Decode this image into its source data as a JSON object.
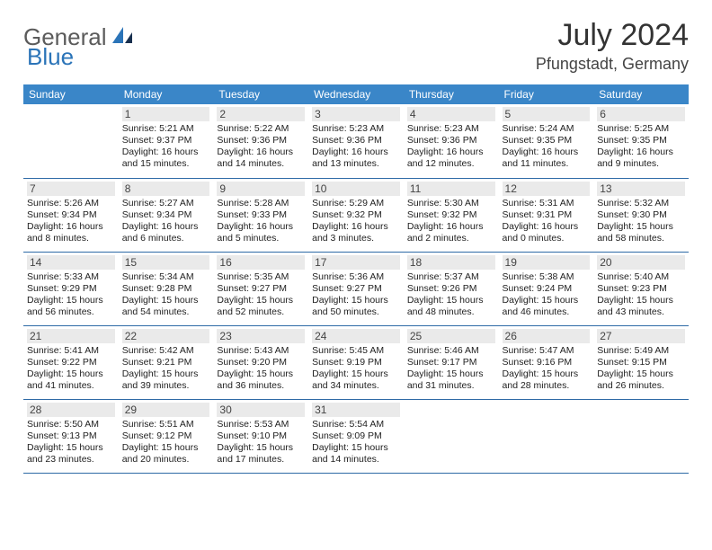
{
  "logo": {
    "text1": "General",
    "text2": "Blue",
    "color1": "#5b5b5b",
    "color2": "#2b74b8"
  },
  "header": {
    "month_title": "July 2024",
    "location": "Pfungstadt, Germany"
  },
  "colors": {
    "header_bg": "#3a86c8",
    "header_text": "#ffffff",
    "cell_border": "#2e6aa6",
    "daynum_bg": "#eaeaea",
    "text": "#222222",
    "page_bg": "#ffffff"
  },
  "typography": {
    "month_fontsize": 34,
    "location_fontsize": 18,
    "header_fontsize": 12,
    "body_fontsize": 10.5
  },
  "day_headers": [
    "Sunday",
    "Monday",
    "Tuesday",
    "Wednesday",
    "Thursday",
    "Friday",
    "Saturday"
  ],
  "weeks": [
    [
      null,
      {
        "n": "1",
        "sr": "Sunrise: 5:21 AM",
        "ss": "Sunset: 9:37 PM",
        "d1": "Daylight: 16 hours",
        "d2": "and 15 minutes."
      },
      {
        "n": "2",
        "sr": "Sunrise: 5:22 AM",
        "ss": "Sunset: 9:36 PM",
        "d1": "Daylight: 16 hours",
        "d2": "and 14 minutes."
      },
      {
        "n": "3",
        "sr": "Sunrise: 5:23 AM",
        "ss": "Sunset: 9:36 PM",
        "d1": "Daylight: 16 hours",
        "d2": "and 13 minutes."
      },
      {
        "n": "4",
        "sr": "Sunrise: 5:23 AM",
        "ss": "Sunset: 9:36 PM",
        "d1": "Daylight: 16 hours",
        "d2": "and 12 minutes."
      },
      {
        "n": "5",
        "sr": "Sunrise: 5:24 AM",
        "ss": "Sunset: 9:35 PM",
        "d1": "Daylight: 16 hours",
        "d2": "and 11 minutes."
      },
      {
        "n": "6",
        "sr": "Sunrise: 5:25 AM",
        "ss": "Sunset: 9:35 PM",
        "d1": "Daylight: 16 hours",
        "d2": "and 9 minutes."
      }
    ],
    [
      {
        "n": "7",
        "sr": "Sunrise: 5:26 AM",
        "ss": "Sunset: 9:34 PM",
        "d1": "Daylight: 16 hours",
        "d2": "and 8 minutes."
      },
      {
        "n": "8",
        "sr": "Sunrise: 5:27 AM",
        "ss": "Sunset: 9:34 PM",
        "d1": "Daylight: 16 hours",
        "d2": "and 6 minutes."
      },
      {
        "n": "9",
        "sr": "Sunrise: 5:28 AM",
        "ss": "Sunset: 9:33 PM",
        "d1": "Daylight: 16 hours",
        "d2": "and 5 minutes."
      },
      {
        "n": "10",
        "sr": "Sunrise: 5:29 AM",
        "ss": "Sunset: 9:32 PM",
        "d1": "Daylight: 16 hours",
        "d2": "and 3 minutes."
      },
      {
        "n": "11",
        "sr": "Sunrise: 5:30 AM",
        "ss": "Sunset: 9:32 PM",
        "d1": "Daylight: 16 hours",
        "d2": "and 2 minutes."
      },
      {
        "n": "12",
        "sr": "Sunrise: 5:31 AM",
        "ss": "Sunset: 9:31 PM",
        "d1": "Daylight: 16 hours",
        "d2": "and 0 minutes."
      },
      {
        "n": "13",
        "sr": "Sunrise: 5:32 AM",
        "ss": "Sunset: 9:30 PM",
        "d1": "Daylight: 15 hours",
        "d2": "and 58 minutes."
      }
    ],
    [
      {
        "n": "14",
        "sr": "Sunrise: 5:33 AM",
        "ss": "Sunset: 9:29 PM",
        "d1": "Daylight: 15 hours",
        "d2": "and 56 minutes."
      },
      {
        "n": "15",
        "sr": "Sunrise: 5:34 AM",
        "ss": "Sunset: 9:28 PM",
        "d1": "Daylight: 15 hours",
        "d2": "and 54 minutes."
      },
      {
        "n": "16",
        "sr": "Sunrise: 5:35 AM",
        "ss": "Sunset: 9:27 PM",
        "d1": "Daylight: 15 hours",
        "d2": "and 52 minutes."
      },
      {
        "n": "17",
        "sr": "Sunrise: 5:36 AM",
        "ss": "Sunset: 9:27 PM",
        "d1": "Daylight: 15 hours",
        "d2": "and 50 minutes."
      },
      {
        "n": "18",
        "sr": "Sunrise: 5:37 AM",
        "ss": "Sunset: 9:26 PM",
        "d1": "Daylight: 15 hours",
        "d2": "and 48 minutes."
      },
      {
        "n": "19",
        "sr": "Sunrise: 5:38 AM",
        "ss": "Sunset: 9:24 PM",
        "d1": "Daylight: 15 hours",
        "d2": "and 46 minutes."
      },
      {
        "n": "20",
        "sr": "Sunrise: 5:40 AM",
        "ss": "Sunset: 9:23 PM",
        "d1": "Daylight: 15 hours",
        "d2": "and 43 minutes."
      }
    ],
    [
      {
        "n": "21",
        "sr": "Sunrise: 5:41 AM",
        "ss": "Sunset: 9:22 PM",
        "d1": "Daylight: 15 hours",
        "d2": "and 41 minutes."
      },
      {
        "n": "22",
        "sr": "Sunrise: 5:42 AM",
        "ss": "Sunset: 9:21 PM",
        "d1": "Daylight: 15 hours",
        "d2": "and 39 minutes."
      },
      {
        "n": "23",
        "sr": "Sunrise: 5:43 AM",
        "ss": "Sunset: 9:20 PM",
        "d1": "Daylight: 15 hours",
        "d2": "and 36 minutes."
      },
      {
        "n": "24",
        "sr": "Sunrise: 5:45 AM",
        "ss": "Sunset: 9:19 PM",
        "d1": "Daylight: 15 hours",
        "d2": "and 34 minutes."
      },
      {
        "n": "25",
        "sr": "Sunrise: 5:46 AM",
        "ss": "Sunset: 9:17 PM",
        "d1": "Daylight: 15 hours",
        "d2": "and 31 minutes."
      },
      {
        "n": "26",
        "sr": "Sunrise: 5:47 AM",
        "ss": "Sunset: 9:16 PM",
        "d1": "Daylight: 15 hours",
        "d2": "and 28 minutes."
      },
      {
        "n": "27",
        "sr": "Sunrise: 5:49 AM",
        "ss": "Sunset: 9:15 PM",
        "d1": "Daylight: 15 hours",
        "d2": "and 26 minutes."
      }
    ],
    [
      {
        "n": "28",
        "sr": "Sunrise: 5:50 AM",
        "ss": "Sunset: 9:13 PM",
        "d1": "Daylight: 15 hours",
        "d2": "and 23 minutes."
      },
      {
        "n": "29",
        "sr": "Sunrise: 5:51 AM",
        "ss": "Sunset: 9:12 PM",
        "d1": "Daylight: 15 hours",
        "d2": "and 20 minutes."
      },
      {
        "n": "30",
        "sr": "Sunrise: 5:53 AM",
        "ss": "Sunset: 9:10 PM",
        "d1": "Daylight: 15 hours",
        "d2": "and 17 minutes."
      },
      {
        "n": "31",
        "sr": "Sunrise: 5:54 AM",
        "ss": "Sunset: 9:09 PM",
        "d1": "Daylight: 15 hours",
        "d2": "and 14 minutes."
      },
      null,
      null,
      null
    ]
  ]
}
